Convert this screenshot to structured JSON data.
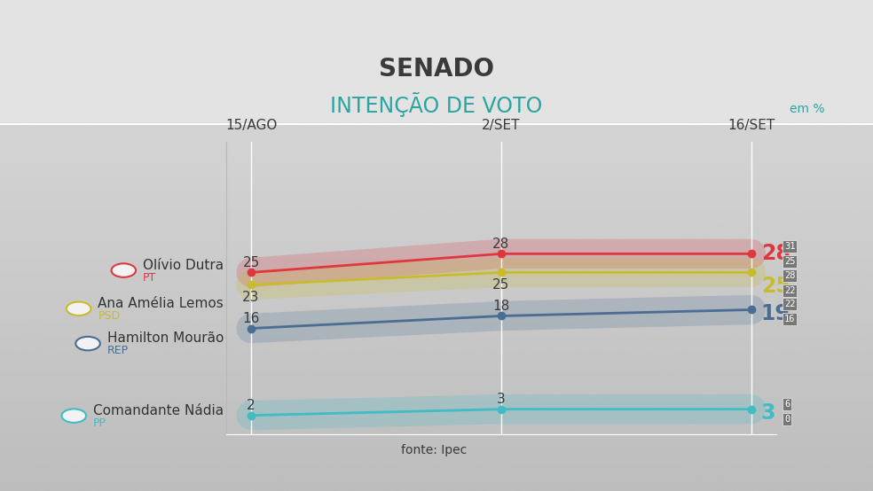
{
  "chart_data": {
    "type": "line",
    "title": "SENADO",
    "subtitle": "INTENÇÃO DE VOTO",
    "unit": "em %",
    "source": "fonte: Ipec",
    "categories": [
      "15/AGO",
      "2/SET",
      "16/SET"
    ],
    "series": [
      {
        "name": "Olívio Dutra",
        "party": "PT",
        "color": "#e0373f",
        "values": [
          25,
          28,
          28
        ],
        "margin": {
          "high": 31,
          "low": 25
        }
      },
      {
        "name": "Ana Amélia Lemos",
        "party": "PSD",
        "color": "#c9bc2c",
        "values": [
          23,
          25,
          25
        ],
        "margin": {
          "high": 28,
          "low": 22
        }
      },
      {
        "name": "Hamilton Mourão",
        "party": "REP",
        "color": "#4a6d94",
        "values": [
          16,
          18,
          19
        ],
        "margin": {
          "high": 22,
          "low": 16
        }
      },
      {
        "name": "Comandante Nádia",
        "party": "PP",
        "color": "#3fbcc4",
        "values": [
          2,
          3,
          3
        ],
        "margin": {
          "high": 6,
          "low": 0
        }
      }
    ],
    "ylim": [
      -1,
      46
    ],
    "grid": true,
    "data_labels": true,
    "tick_labels": "x",
    "marker": "o"
  }
}
